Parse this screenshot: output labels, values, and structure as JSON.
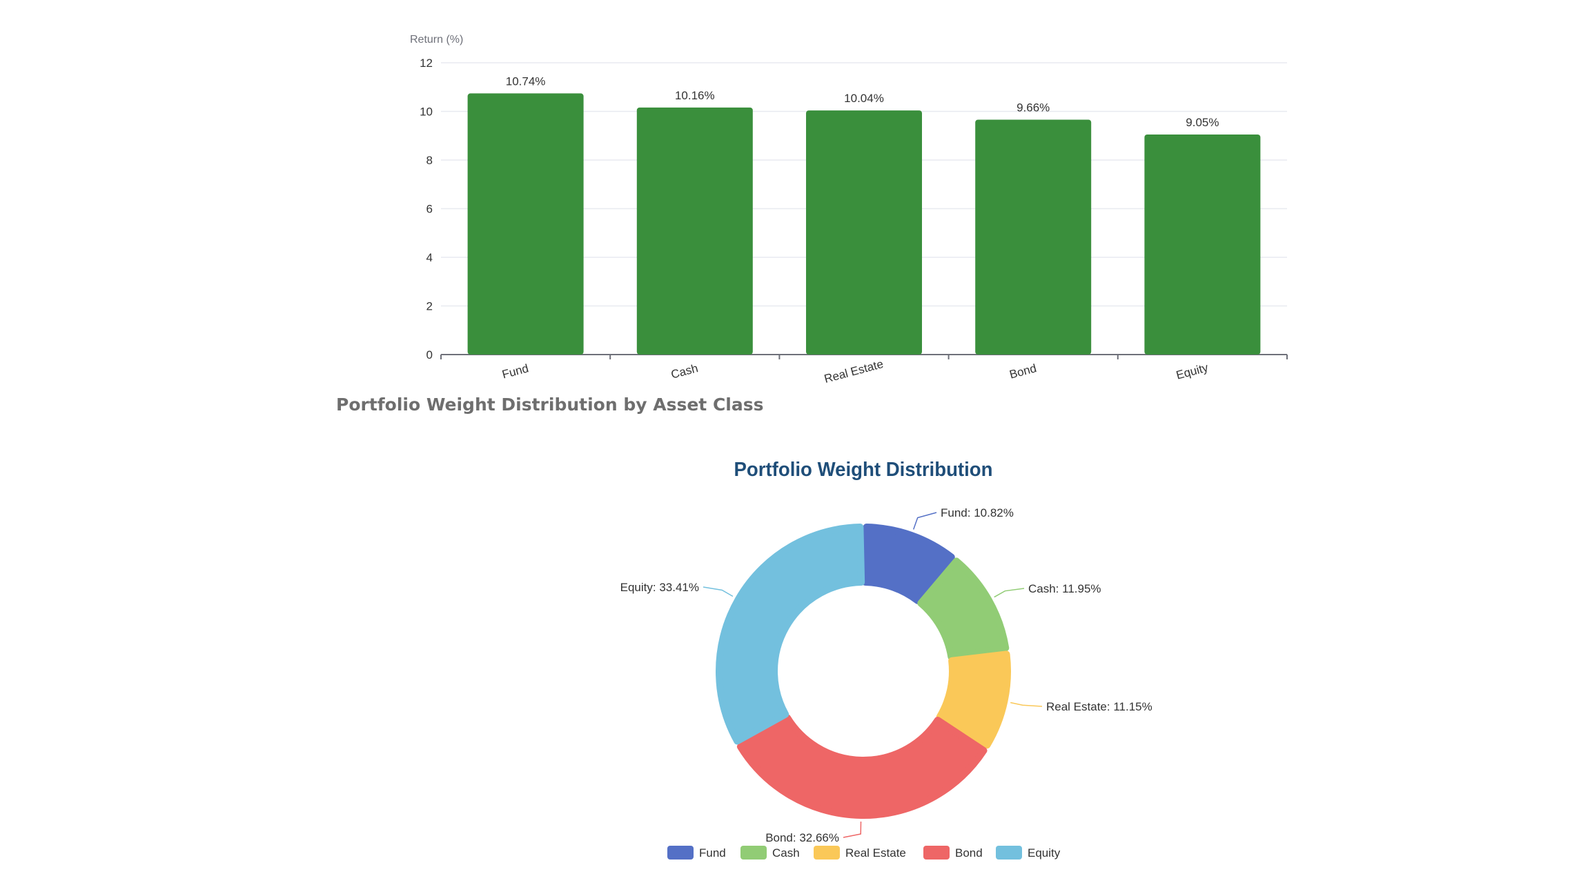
{
  "chart_data": [
    {
      "type": "bar",
      "title": "",
      "ylabel": "Return (%)",
      "xlabel": "",
      "categories": [
        "Fund",
        "Cash",
        "Real Estate",
        "Bond",
        "Equity"
      ],
      "values": [
        10.74,
        10.16,
        10.04,
        9.66,
        9.05
      ],
      "data_labels": [
        "10.74%",
        "10.16%",
        "10.04%",
        "9.66%",
        "9.05%"
      ],
      "ylim": [
        0,
        12
      ],
      "yticks": [
        0,
        2,
        4,
        6,
        8,
        10,
        12
      ],
      "grid": true,
      "bar_color": "#3a8f3c"
    },
    {
      "type": "pie",
      "variant": "donut",
      "title": "Portfolio Weight Distribution",
      "categories": [
        "Fund",
        "Cash",
        "Real Estate",
        "Bond",
        "Equity"
      ],
      "values": [
        10.82,
        11.95,
        11.15,
        32.66,
        33.41
      ],
      "labels": [
        "Fund: 10.82%",
        "Cash: 11.95%",
        "Real Estate: 11.15%",
        "Bond: 32.66%",
        "Equity: 33.41%"
      ],
      "colors": [
        "#5470c6",
        "#91cc75",
        "#fac858",
        "#ee6666",
        "#73c0de"
      ],
      "legend": "bottom"
    }
  ],
  "section_title": "Portfolio Weight Distribution by Asset Class"
}
